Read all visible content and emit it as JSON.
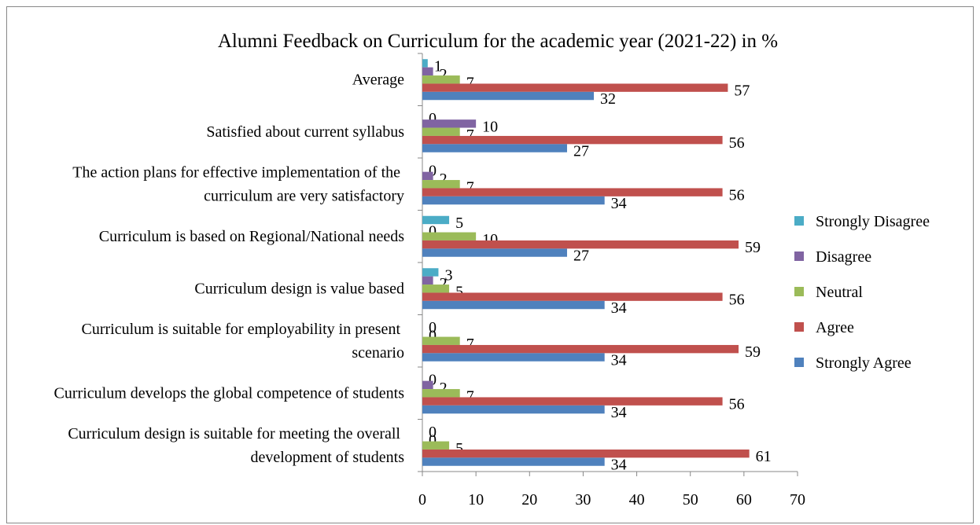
{
  "chart_data": {
    "type": "hbar",
    "title": "Alumni Feedback on Curriculum for the academic year (2021-22) in %",
    "categories": [
      "Average",
      "Satisfied about current syllabus",
      "The action plans for effective implementation of the curriculum are very satisfactory",
      "Curriculum is based on Regional/National needs",
      "Curriculum design is value based",
      "Curriculum is suitable for employability in present scenario",
      "Curriculum develops the global competence of students",
      "Curriculum design is suitable for meeting the overall development of students"
    ],
    "series": [
      {
        "name": "Strongly Disagree",
        "color": "#4bacc6",
        "values": [
          1,
          0,
          0,
          5,
          3,
          0,
          0,
          0
        ]
      },
      {
        "name": "Disagree",
        "color": "#8064a2",
        "values": [
          2,
          10,
          2,
          0,
          2,
          0,
          2,
          0
        ]
      },
      {
        "name": "Neutral",
        "color": "#9bbb59",
        "values": [
          7,
          7,
          7,
          10,
          5,
          7,
          7,
          5
        ]
      },
      {
        "name": "Agree",
        "color": "#c0504d",
        "values": [
          57,
          56,
          56,
          59,
          56,
          59,
          56,
          61
        ]
      },
      {
        "name": "Strongly Agree",
        "color": "#4f81bd",
        "values": [
          32,
          27,
          34,
          27,
          34,
          34,
          34,
          34
        ]
      }
    ],
    "xlim": [
      0,
      70
    ],
    "xticks": [
      0,
      10,
      20,
      30,
      40,
      50,
      60,
      70
    ],
    "legend": "right"
  }
}
